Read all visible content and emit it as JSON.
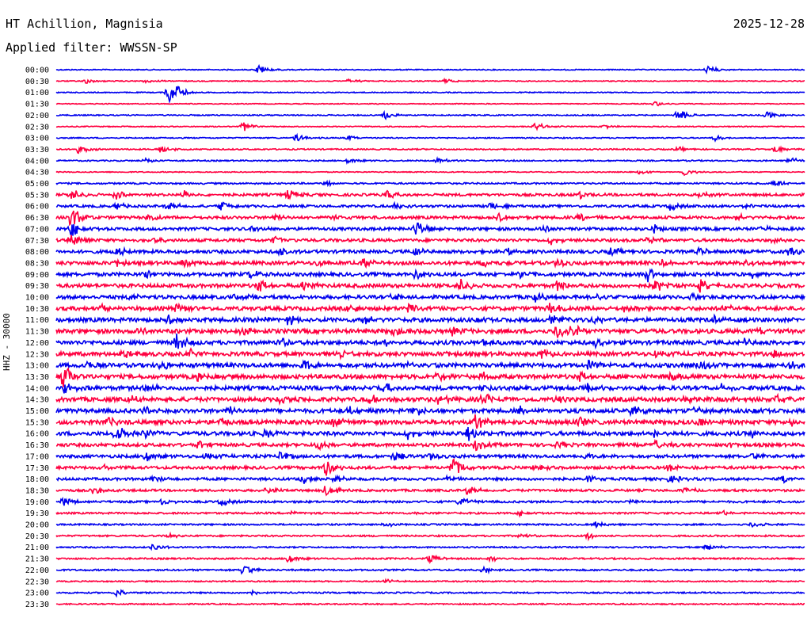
{
  "header": {
    "station": "HT Achillion, Magnisia",
    "date": "2025-12-28",
    "filter": "Applied filter: WWSSN-SP"
  },
  "chart_data": {
    "type": "line",
    "title": "HT Achillion, Magnisia",
    "ylabel": "HHZ - 30000",
    "colors": [
      "#0000ee",
      "#ff0040"
    ],
    "rows": [
      {
        "label": "00:00",
        "color": "#0000ee",
        "noise": 0.6,
        "events": [
          [
            27,
            6
          ],
          [
            87,
            5
          ]
        ]
      },
      {
        "label": "00:30",
        "color": "#ff0040",
        "noise": 0.6,
        "events": [
          [
            4,
            3
          ],
          [
            12,
            3
          ],
          [
            39,
            3
          ],
          [
            52,
            3
          ]
        ]
      },
      {
        "label": "01:00",
        "color": "#0000ee",
        "noise": 0.6,
        "events": [
          [
            15,
            14
          ],
          [
            16,
            8
          ]
        ]
      },
      {
        "label": "01:30",
        "color": "#ff0040",
        "noise": 0.5,
        "events": [
          [
            80,
            3
          ]
        ]
      },
      {
        "label": "02:00",
        "color": "#0000ee",
        "noise": 0.7,
        "events": [
          [
            44,
            5
          ],
          [
            83,
            9
          ],
          [
            95,
            5
          ]
        ]
      },
      {
        "label": "02:30",
        "color": "#ff0040",
        "noise": 0.6,
        "events": [
          [
            25,
            6
          ],
          [
            64,
            6
          ],
          [
            73,
            3
          ]
        ]
      },
      {
        "label": "03:00",
        "color": "#0000ee",
        "noise": 0.7,
        "events": [
          [
            32,
            5
          ],
          [
            39,
            3
          ],
          [
            88,
            4
          ]
        ]
      },
      {
        "label": "03:30",
        "color": "#ff0040",
        "noise": 0.8,
        "events": [
          [
            3,
            5
          ],
          [
            14,
            6
          ],
          [
            83,
            3
          ],
          [
            96,
            5
          ]
        ]
      },
      {
        "label": "04:00",
        "color": "#0000ee",
        "noise": 0.8,
        "events": [
          [
            12,
            4
          ],
          [
            39,
            3
          ],
          [
            51,
            3
          ],
          [
            98,
            5
          ]
        ]
      },
      {
        "label": "04:30",
        "color": "#ff0040",
        "noise": 0.6,
        "events": [
          [
            78,
            3
          ],
          [
            84,
            5
          ]
        ]
      },
      {
        "label": "05:00",
        "color": "#0000ee",
        "noise": 1.0,
        "events": [
          [
            36,
            3
          ],
          [
            96,
            5
          ]
        ]
      },
      {
        "label": "05:30",
        "color": "#ff0040",
        "noise": 1.6,
        "events": [
          [
            2,
            8
          ],
          [
            8,
            6
          ],
          [
            17,
            5
          ],
          [
            31,
            6
          ],
          [
            44,
            6
          ],
          [
            70,
            5
          ],
          [
            86,
            4
          ]
        ]
      },
      {
        "label": "06:00",
        "color": "#0000ee",
        "noise": 1.5,
        "events": [
          [
            8,
            5
          ],
          [
            15,
            5
          ],
          [
            22,
            6
          ],
          [
            45,
            5
          ],
          [
            58,
            5
          ],
          [
            82,
            5
          ],
          [
            92,
            4
          ]
        ]
      },
      {
        "label": "06:30",
        "color": "#ff0040",
        "noise": 1.8,
        "events": [
          [
            2,
            16
          ],
          [
            12,
            5
          ],
          [
            29,
            5
          ],
          [
            37,
            5
          ],
          [
            59,
            6
          ],
          [
            70,
            5
          ],
          [
            91,
            4
          ]
        ]
      },
      {
        "label": "07:00",
        "color": "#0000ee",
        "noise": 1.8,
        "events": [
          [
            2,
            10
          ],
          [
            26,
            5
          ],
          [
            48,
            12
          ],
          [
            65,
            6
          ],
          [
            80,
            5
          ],
          [
            94,
            5
          ]
        ]
      },
      {
        "label": "07:30",
        "color": "#ff0040",
        "noise": 1.8,
        "events": [
          [
            2,
            9
          ],
          [
            13,
            4
          ],
          [
            29,
            5
          ],
          [
            66,
            5
          ],
          [
            79,
            5
          ],
          [
            96,
            6
          ]
        ]
      },
      {
        "label": "08:00",
        "color": "#0000ee",
        "noise": 2.0,
        "events": [
          [
            8,
            6
          ],
          [
            30,
            5
          ],
          [
            48,
            6
          ],
          [
            60,
            5
          ],
          [
            74,
            5
          ],
          [
            86,
            5
          ],
          [
            98,
            7
          ]
        ]
      },
      {
        "label": "08:30",
        "color": "#ff0040",
        "noise": 2.2,
        "events": [
          [
            8,
            6
          ],
          [
            17,
            5
          ],
          [
            35,
            5
          ],
          [
            41,
            6
          ],
          [
            57,
            5
          ],
          [
            67,
            6
          ],
          [
            81,
            5
          ],
          [
            92,
            6
          ]
        ]
      },
      {
        "label": "09:00",
        "color": "#0000ee",
        "noise": 2.2,
        "events": [
          [
            12,
            6
          ],
          [
            26,
            5
          ],
          [
            48,
            7
          ],
          [
            62,
            5
          ],
          [
            79,
            9
          ],
          [
            93,
            5
          ]
        ]
      },
      {
        "label": "09:30",
        "color": "#ff0040",
        "noise": 2.3,
        "events": [
          [
            27,
            9
          ],
          [
            33,
            8
          ],
          [
            54,
            8
          ],
          [
            67,
            8
          ],
          [
            80,
            9
          ],
          [
            86,
            8
          ]
        ]
      },
      {
        "label": "10:00",
        "color": "#0000ee",
        "noise": 2.2,
        "events": [
          [
            10,
            5
          ],
          [
            24,
            5
          ],
          [
            45,
            5
          ],
          [
            64,
            6
          ],
          [
            72,
            5
          ],
          [
            85,
            5
          ]
        ]
      },
      {
        "label": "10:30",
        "color": "#ff0040",
        "noise": 2.4,
        "events": [
          [
            6,
            5
          ],
          [
            16,
            5
          ],
          [
            39,
            6
          ],
          [
            47,
            5
          ],
          [
            66,
            7
          ],
          [
            76,
            5
          ],
          [
            89,
            5
          ]
        ]
      },
      {
        "label": "11:00",
        "color": "#0000ee",
        "noise": 2.5,
        "events": [
          [
            15,
            6
          ],
          [
            27,
            6
          ],
          [
            31,
            6
          ],
          [
            41,
            6
          ],
          [
            56,
            5
          ],
          [
            66,
            6
          ],
          [
            72,
            5
          ],
          [
            88,
            6
          ]
        ]
      },
      {
        "label": "11:30",
        "color": "#ff0040",
        "noise": 2.6,
        "events": [
          [
            11,
            5
          ],
          [
            25,
            6
          ],
          [
            45,
            5
          ],
          [
            53,
            5
          ],
          [
            67,
            12
          ],
          [
            69,
            8
          ],
          [
            94,
            5
          ]
        ]
      },
      {
        "label": "12:00",
        "color": "#0000ee",
        "noise": 2.5,
        "events": [
          [
            16,
            13
          ],
          [
            30,
            5
          ],
          [
            44,
            6
          ],
          [
            57,
            5
          ],
          [
            72,
            5
          ],
          [
            92,
            5
          ]
        ]
      },
      {
        "label": "12:30",
        "color": "#ff0040",
        "noise": 2.5,
        "events": [
          [
            9,
            5
          ],
          [
            18,
            5
          ],
          [
            38,
            6
          ],
          [
            52,
            5
          ],
          [
            65,
            6
          ],
          [
            80,
            5
          ],
          [
            96,
            5
          ]
        ]
      },
      {
        "label": "13:00",
        "color": "#0000ee",
        "noise": 2.6,
        "events": [
          [
            4,
            6
          ],
          [
            14,
            5
          ],
          [
            33,
            6
          ],
          [
            47,
            5
          ],
          [
            71,
            6
          ],
          [
            86,
            7
          ],
          [
            98,
            6
          ]
        ]
      },
      {
        "label": "13:30",
        "color": "#ff0040",
        "noise": 2.6,
        "events": [
          [
            1,
            16
          ],
          [
            19,
            5
          ],
          [
            51,
            7
          ],
          [
            57,
            5
          ],
          [
            70,
            6
          ],
          [
            82,
            5
          ]
        ]
      },
      {
        "label": "14:00",
        "color": "#0000ee",
        "noise": 2.5,
        "events": [
          [
            1,
            7
          ],
          [
            12,
            6
          ],
          [
            37,
            5
          ],
          [
            44,
            6
          ],
          [
            57,
            5
          ],
          [
            71,
            5
          ],
          [
            89,
            5
          ]
        ]
      },
      {
        "label": "14:30",
        "color": "#ff0040",
        "noise": 2.6,
        "events": [
          [
            10,
            5
          ],
          [
            30,
            5
          ],
          [
            42,
            6
          ],
          [
            51,
            5
          ],
          [
            57,
            12
          ],
          [
            67,
            5
          ],
          [
            84,
            5
          ],
          [
            96,
            5
          ]
        ]
      },
      {
        "label": "15:00",
        "color": "#0000ee",
        "noise": 2.5,
        "events": [
          [
            12,
            6
          ],
          [
            23,
            5
          ],
          [
            39,
            5
          ],
          [
            48,
            6
          ],
          [
            62,
            5
          ],
          [
            77,
            6
          ],
          [
            85,
            5
          ],
          [
            93,
            5
          ]
        ]
      },
      {
        "label": "15:30",
        "color": "#ff0040",
        "noise": 2.6,
        "events": [
          [
            7,
            5
          ],
          [
            22,
            6
          ],
          [
            37,
            8
          ],
          [
            56,
            10
          ],
          [
            70,
            5
          ],
          [
            86,
            6
          ],
          [
            98,
            5
          ]
        ]
      },
      {
        "label": "16:00",
        "color": "#0000ee",
        "noise": 2.4,
        "events": [
          [
            8,
            12
          ],
          [
            12,
            6
          ],
          [
            28,
            5
          ],
          [
            47,
            6
          ],
          [
            55,
            9
          ],
          [
            80,
            6
          ],
          [
            93,
            5
          ]
        ]
      },
      {
        "label": "16:30",
        "color": "#ff0040",
        "noise": 2.0,
        "events": [
          [
            19,
            5
          ],
          [
            35,
            6
          ],
          [
            56,
            7
          ],
          [
            67,
            5
          ],
          [
            80,
            6
          ],
          [
            90,
            5
          ]
        ]
      },
      {
        "label": "17:00",
        "color": "#0000ee",
        "noise": 1.9,
        "events": [
          [
            12,
            6
          ],
          [
            20,
            5
          ],
          [
            30,
            6
          ],
          [
            45,
            6
          ],
          [
            50,
            5
          ],
          [
            70,
            5
          ],
          [
            93,
            4
          ]
        ]
      },
      {
        "label": "17:30",
        "color": "#ff0040",
        "noise": 1.8,
        "events": [
          [
            6,
            4
          ],
          [
            36,
            12
          ],
          [
            53,
            14
          ],
          [
            64,
            5
          ],
          [
            82,
            6
          ]
        ]
      },
      {
        "label": "18:00",
        "color": "#0000ee",
        "noise": 1.6,
        "events": [
          [
            13,
            4
          ],
          [
            33,
            6
          ],
          [
            37,
            5
          ],
          [
            52,
            5
          ],
          [
            71,
            4
          ],
          [
            82,
            5
          ],
          [
            97,
            5
          ]
        ]
      },
      {
        "label": "18:30",
        "color": "#ff0040",
        "noise": 1.4,
        "events": [
          [
            5,
            5
          ],
          [
            28,
            5
          ],
          [
            36,
            8
          ],
          [
            55,
            6
          ],
          [
            84,
            4
          ]
        ]
      },
      {
        "label": "19:00",
        "color": "#0000ee",
        "noise": 1.3,
        "events": [
          [
            1,
            6
          ],
          [
            14,
            4
          ],
          [
            22,
            5
          ],
          [
            54,
            6
          ],
          [
            77,
            4
          ]
        ]
      },
      {
        "label": "19:30",
        "color": "#ff0040",
        "noise": 1.1,
        "events": [
          [
            31,
            3
          ],
          [
            48,
            3
          ],
          [
            62,
            3
          ],
          [
            89,
            3
          ]
        ]
      },
      {
        "label": "20:00",
        "color": "#0000ee",
        "noise": 1.0,
        "events": [
          [
            44,
            3
          ],
          [
            72,
            4
          ],
          [
            93,
            4
          ]
        ]
      },
      {
        "label": "20:30",
        "color": "#ff0040",
        "noise": 1.0,
        "events": [
          [
            15,
            3
          ],
          [
            62,
            3
          ],
          [
            71,
            4
          ]
        ]
      },
      {
        "label": "21:00",
        "color": "#0000ee",
        "noise": 0.9,
        "events": [
          [
            13,
            5
          ],
          [
            87,
            5
          ]
        ]
      },
      {
        "label": "21:30",
        "color": "#ff0040",
        "noise": 1.0,
        "events": [
          [
            31,
            5
          ],
          [
            50,
            6
          ],
          [
            58,
            4
          ]
        ]
      },
      {
        "label": "22:00",
        "color": "#0000ee",
        "noise": 1.0,
        "events": [
          [
            25,
            7
          ],
          [
            57,
            4
          ]
        ]
      },
      {
        "label": "22:30",
        "color": "#ff0040",
        "noise": 0.8,
        "events": [
          [
            44,
            3
          ]
        ]
      },
      {
        "label": "23:00",
        "color": "#0000ee",
        "noise": 0.9,
        "events": [
          [
            8,
            5
          ],
          [
            26,
            3
          ]
        ]
      },
      {
        "label": "23:30",
        "color": "#ff0040",
        "noise": 0.8,
        "events": []
      }
    ]
  }
}
